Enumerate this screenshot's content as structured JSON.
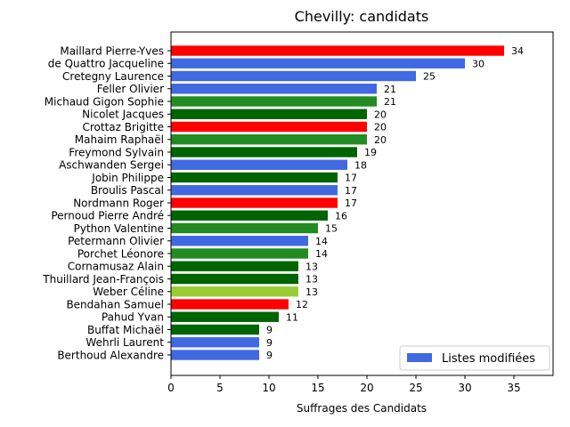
{
  "chart_data": {
    "type": "bar",
    "orientation": "horizontal",
    "title": "Chevilly: candidats",
    "xlabel": "Suffrages des Candidats",
    "ylabel": "",
    "xlim": [
      0,
      39
    ],
    "xticks": [
      0,
      5,
      10,
      15,
      20,
      25,
      30,
      35
    ],
    "grid": false,
    "legend": {
      "placement": "lower-right",
      "entries": [
        {
          "label": "Listes modifiées",
          "color": "#4169e1"
        }
      ]
    },
    "bars": [
      {
        "name": "Maillard Pierre-Yves",
        "value": 34,
        "color": "#ff0000"
      },
      {
        "name": "de Quattro Jacqueline",
        "value": 30,
        "color": "#4169e1"
      },
      {
        "name": "Cretegny Laurence",
        "value": 25,
        "color": "#4169e1"
      },
      {
        "name": "Feller Olivier",
        "value": 21,
        "color": "#4169e1"
      },
      {
        "name": "Michaud Gigon Sophie",
        "value": 21,
        "color": "#228b22"
      },
      {
        "name": "Nicolet Jacques",
        "value": 20,
        "color": "#006400"
      },
      {
        "name": "Crottaz Brigitte",
        "value": 20,
        "color": "#ff0000"
      },
      {
        "name": "Mahaim Raphaël",
        "value": 20,
        "color": "#228b22"
      },
      {
        "name": "Freymond Sylvain",
        "value": 19,
        "color": "#006400"
      },
      {
        "name": "Aschwanden Sergei",
        "value": 18,
        "color": "#4169e1"
      },
      {
        "name": "Jobin Philippe",
        "value": 17,
        "color": "#006400"
      },
      {
        "name": "Broulis Pascal",
        "value": 17,
        "color": "#4169e1"
      },
      {
        "name": "Nordmann Roger",
        "value": 17,
        "color": "#ff0000"
      },
      {
        "name": "Pernoud Pierre André",
        "value": 16,
        "color": "#006400"
      },
      {
        "name": "Python Valentine",
        "value": 15,
        "color": "#228b22"
      },
      {
        "name": "Petermann Olivier",
        "value": 14,
        "color": "#4169e1"
      },
      {
        "name": "Porchet Léonore",
        "value": 14,
        "color": "#228b22"
      },
      {
        "name": "Cornamusaz Alain",
        "value": 13,
        "color": "#006400"
      },
      {
        "name": "Thuillard Jean-François",
        "value": 13,
        "color": "#006400"
      },
      {
        "name": "Weber Céline",
        "value": 13,
        "color": "#9acd32"
      },
      {
        "name": "Bendahan Samuel",
        "value": 12,
        "color": "#ff0000"
      },
      {
        "name": "Pahud Yvan",
        "value": 11,
        "color": "#006400"
      },
      {
        "name": "Buffat Michaël",
        "value": 9,
        "color": "#006400"
      },
      {
        "name": "Wehrli Laurent",
        "value": 9,
        "color": "#4169e1"
      },
      {
        "name": "Berthoud Alexandre",
        "value": 9,
        "color": "#4169e1"
      }
    ]
  }
}
